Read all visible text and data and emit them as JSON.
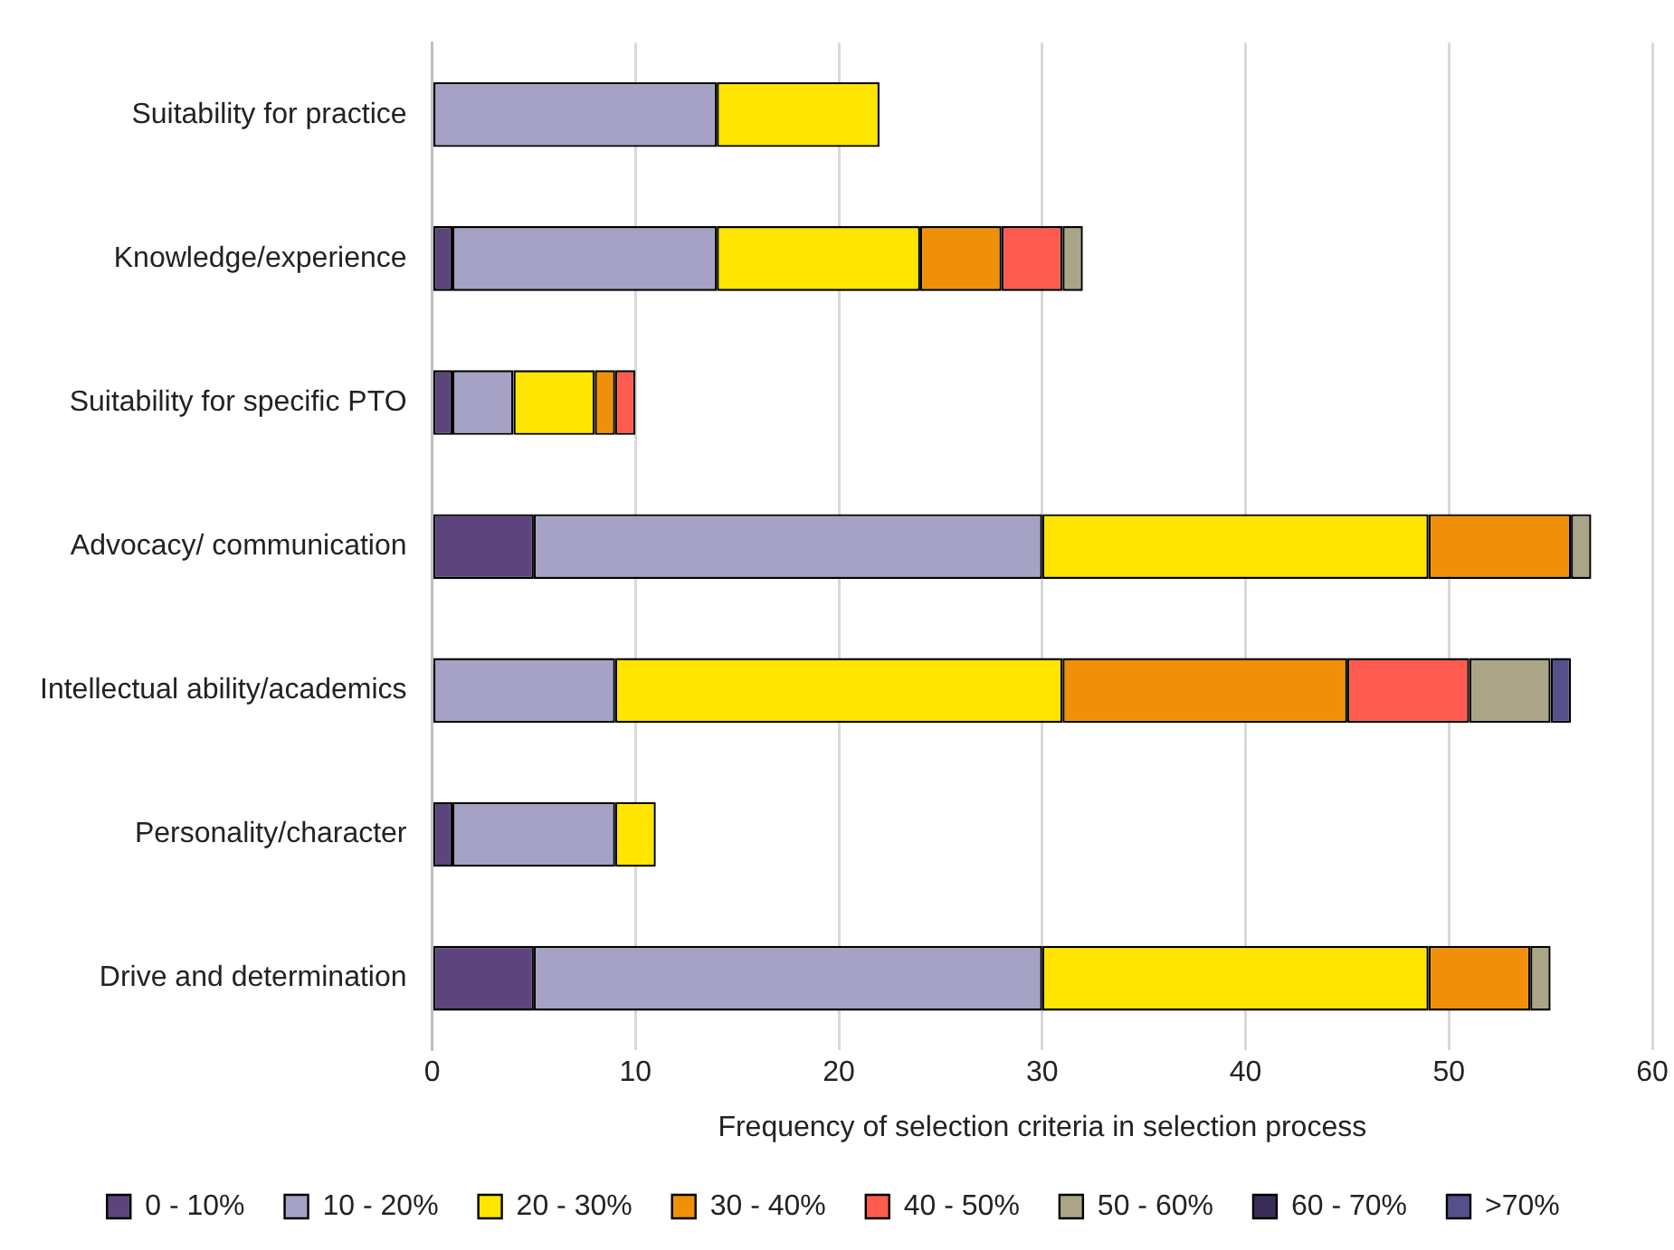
{
  "chart_data": {
    "type": "bar",
    "orientation": "horizontal",
    "stacked": true,
    "xlabel": "Frequency of selection criteria in selection process",
    "categories": [
      "Suitability for practice",
      "Knowledge/experience",
      "Suitability for specific PTO",
      "Advocacy/ communication",
      "Intellectual ability/academics",
      "Personality/character",
      "Drive and determination"
    ],
    "series": [
      {
        "name": "0 - 10%",
        "color": "#5b457b",
        "values": [
          0,
          1,
          1,
          5,
          0,
          1,
          5
        ]
      },
      {
        "name": "10 - 20%",
        "color": "#a6a2c6",
        "values": [
          14,
          13,
          3,
          25,
          9,
          8,
          25
        ]
      },
      {
        "name": "20 - 30%",
        "color": "#ffe500",
        "values": [
          8,
          10,
          4,
          19,
          22,
          2,
          19
        ]
      },
      {
        "name": "30 - 40%",
        "color": "#f0900a",
        "values": [
          0,
          4,
          1,
          7,
          14,
          0,
          5
        ]
      },
      {
        "name": "40 - 50%",
        "color": "#ff5b4f",
        "values": [
          0,
          3,
          1,
          0,
          6,
          0,
          0
        ]
      },
      {
        "name": "50 - 60%",
        "color": "#aaa587",
        "values": [
          0,
          1,
          0,
          1,
          4,
          0,
          1
        ]
      },
      {
        "name": "60 - 70%",
        "color": "#3a2d55",
        "values": [
          0,
          0,
          0,
          0,
          0,
          0,
          0
        ]
      },
      {
        "name": ">70%",
        "color": "#55508a",
        "values": [
          0,
          0,
          0,
          0,
          1,
          0,
          0
        ]
      }
    ],
    "xlim": [
      0,
      60
    ],
    "xticks": [
      0,
      10,
      20,
      30,
      40,
      50,
      60
    ],
    "grid": "x",
    "legend": "bottom"
  }
}
